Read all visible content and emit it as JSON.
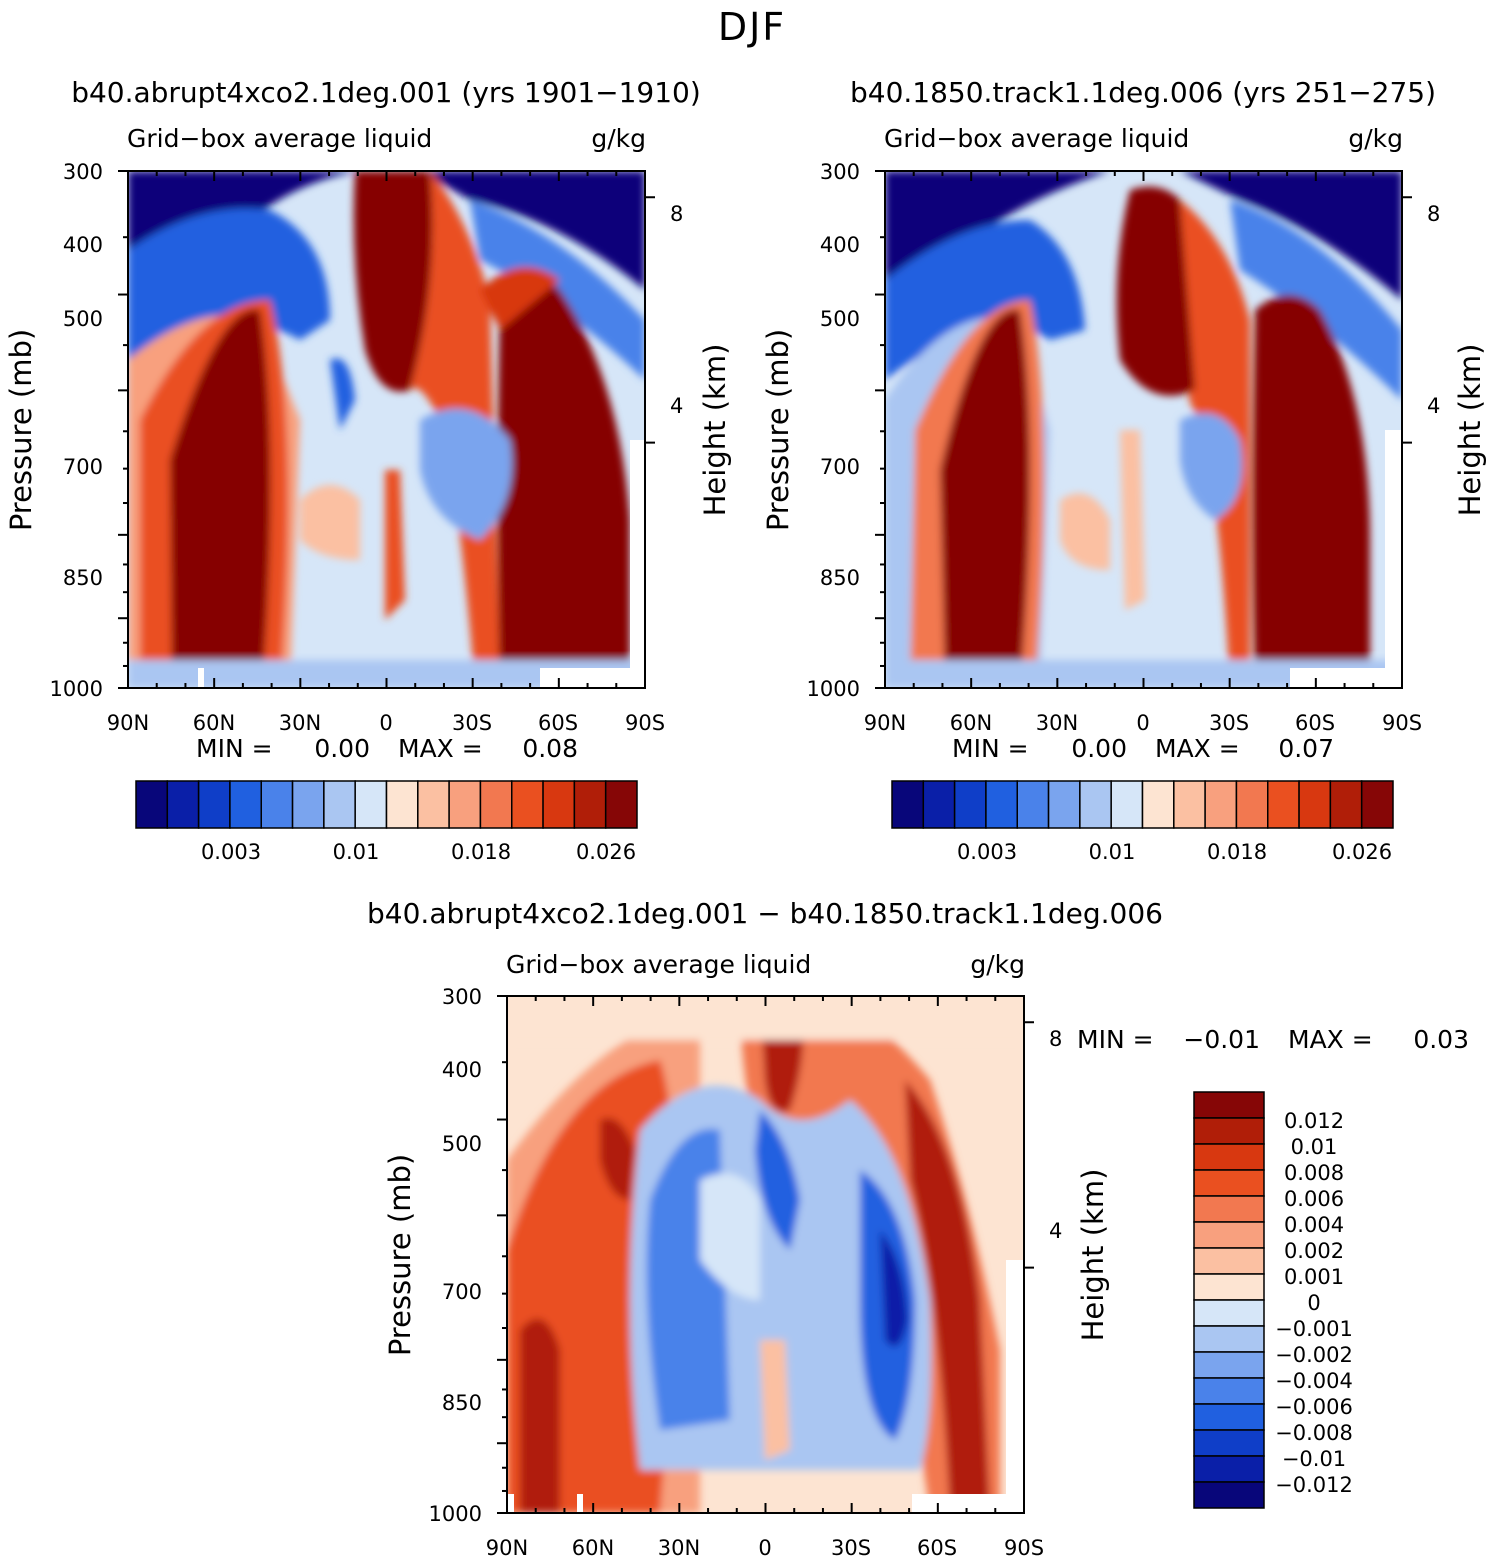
{
  "page_title": "DJF",
  "chart_data": [
    {
      "type": "heatmap",
      "id": "p1",
      "title": "b40.abrupt4xco2.1deg.001 (yrs 1901-1910)",
      "left_label": "Grid-box average liquid",
      "units": "g/kg",
      "ylabel": "Pressure (mb)",
      "y2label": "Height (km)",
      "xlabel": "",
      "x_ticks": [
        "90N",
        "60N",
        "30N",
        "0",
        "30S",
        "60S",
        "90S"
      ],
      "y_ticks": [
        "300",
        "400",
        "500",
        "700",
        "850",
        "1000"
      ],
      "y2_ticks": [
        "8",
        "4"
      ],
      "xlim": [
        90,
        -90
      ],
      "ylim_mb": [
        1000,
        300
      ],
      "stats": {
        "min_label": "MIN =",
        "min": "0.00",
        "max_label": "MAX =",
        "max": "0.08"
      },
      "colorbar_labels": [
        "0.003",
        "0.01",
        "0.018",
        "0.026"
      ]
    },
    {
      "type": "heatmap",
      "id": "p2",
      "title": "b40.1850.track1.1deg.006 (yrs 251-275)",
      "left_label": "Grid-box average liquid",
      "units": "g/kg",
      "ylabel": "Pressure (mb)",
      "y2label": "Height (km)",
      "xlabel": "",
      "x_ticks": [
        "90N",
        "60N",
        "30N",
        "0",
        "30S",
        "60S",
        "90S"
      ],
      "y_ticks": [
        "300",
        "400",
        "500",
        "700",
        "850",
        "1000"
      ],
      "y2_ticks": [
        "8",
        "4"
      ],
      "xlim": [
        90,
        -90
      ],
      "ylim_mb": [
        1000,
        300
      ],
      "stats": {
        "min_label": "MIN =",
        "min": "0.00",
        "max_label": "MAX =",
        "max": "0.07"
      },
      "colorbar_labels": [
        "0.003",
        "0.01",
        "0.018",
        "0.026"
      ]
    },
    {
      "type": "heatmap",
      "id": "p3",
      "title": "b40.abrupt4xco2.1deg.001 - b40.1850.track1.1deg.006",
      "left_label": "Grid-box average liquid",
      "units": "g/kg",
      "ylabel": "Pressure (mb)",
      "y2label": "Height (km)",
      "xlabel": "",
      "x_ticks": [
        "90N",
        "60N",
        "30N",
        "0",
        "30S",
        "60S",
        "90S"
      ],
      "y_ticks": [
        "300",
        "400",
        "500",
        "700",
        "850",
        "1000"
      ],
      "y2_ticks": [
        "8",
        "4"
      ],
      "xlim": [
        90,
        -90
      ],
      "ylim_mb": [
        1000,
        300
      ],
      "stats": {
        "min_label": "MIN =",
        "min": "-0.01",
        "max_label": "MAX =",
        "max": "0.03"
      },
      "colorbar_labels": [
        "0.012",
        "0.01",
        "0.008",
        "0.006",
        "0.004",
        "0.002",
        "0.001",
        "0",
        "-0.001",
        "-0.002",
        "-0.004",
        "-0.006",
        "-0.008",
        "-0.01",
        "-0.012"
      ]
    }
  ],
  "colormap": [
    "#08067a",
    "#0a1fa8",
    "#0f3ec8",
    "#2060e0",
    "#4a82ea",
    "#7aa4ee",
    "#aac6f2",
    "#d6e6f8",
    "#fde4d2",
    "#fbc0a2",
    "#f8a07e",
    "#f27850",
    "#ea5020",
    "#d83810",
    "#b01e08",
    "#860606"
  ]
}
